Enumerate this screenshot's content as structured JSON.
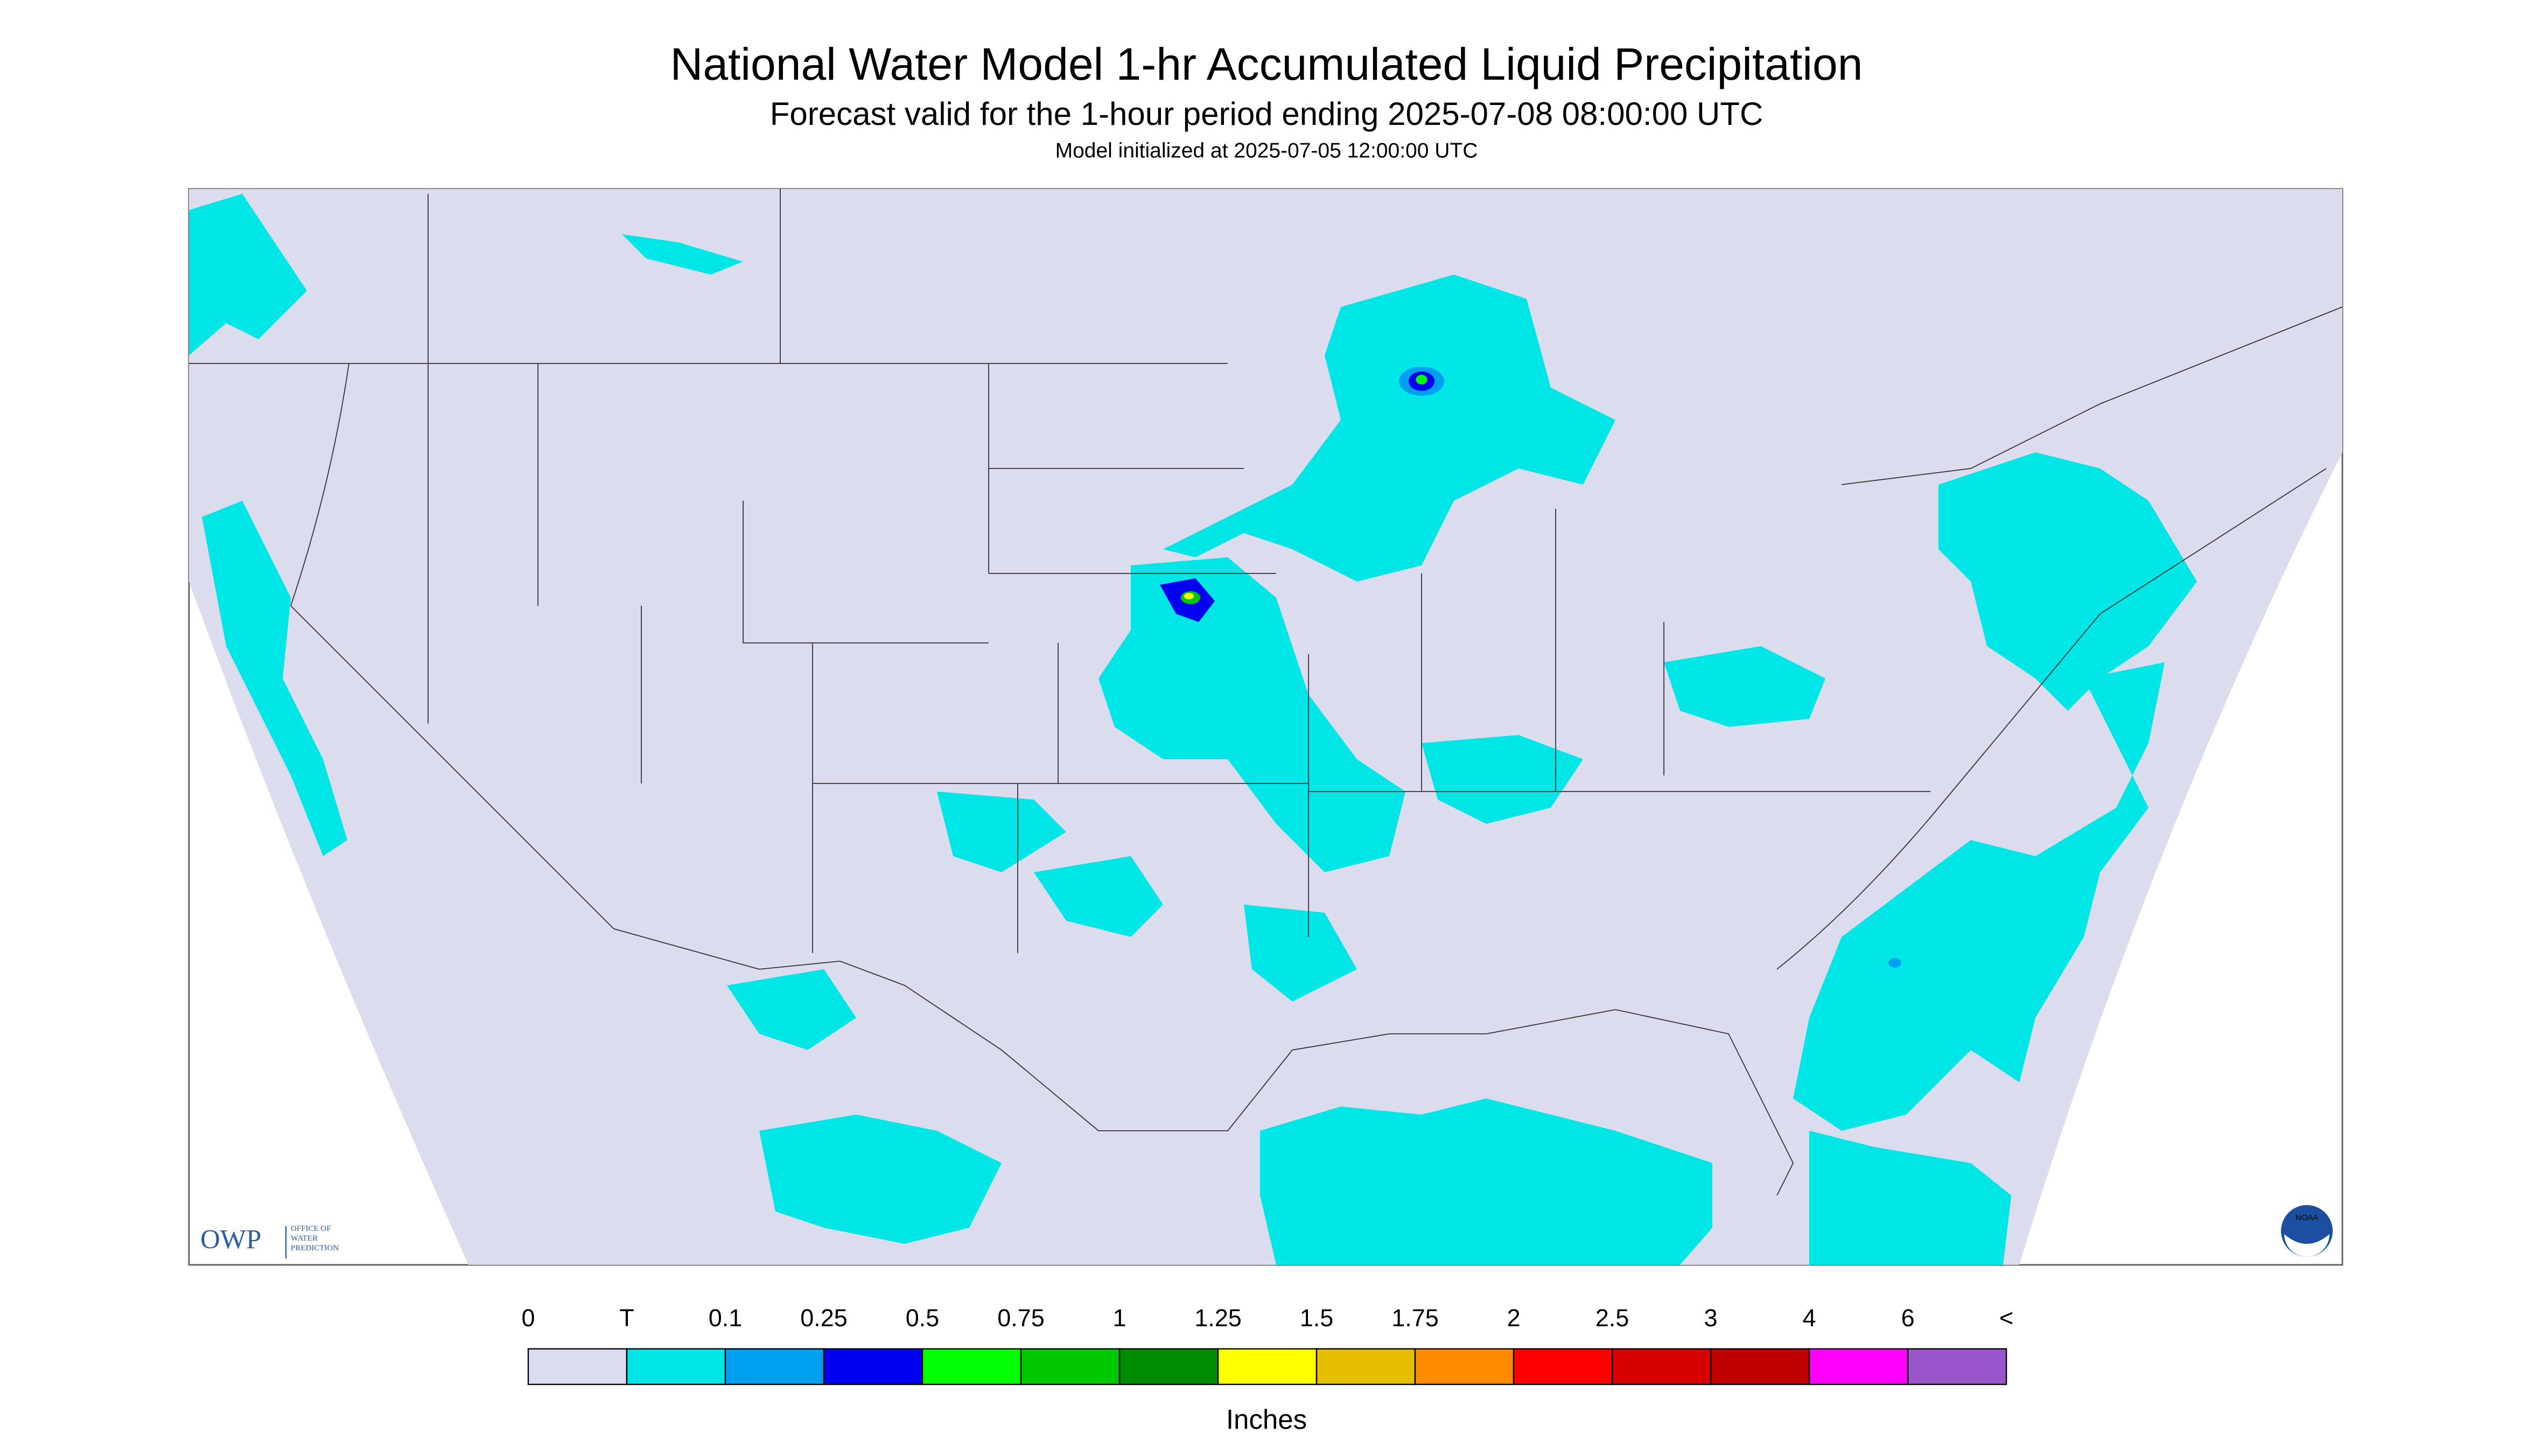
{
  "header": {
    "title": "National Water Model 1-hr Accumulated Liquid Precipitation",
    "subtitle": "Forecast valid for the 1-hour period ending 2025-07-08 08:00:00 UTC",
    "note": "Model initialized at 2025-07-05 12:00:00 UTC"
  },
  "legend": {
    "labels": [
      "0",
      "T",
      "0.1",
      "0.25",
      "0.5",
      "0.75",
      "1",
      "1.25",
      "1.5",
      "1.75",
      "2",
      "2.5",
      "3",
      "4",
      "6",
      "<"
    ],
    "colors": [
      "#dcdcef",
      "#00e6e6",
      "#00a0f0",
      "#0000f0",
      "#00ff00",
      "#00c800",
      "#008c00",
      "#ffff00",
      "#e6be00",
      "#ff8c00",
      "#ff0000",
      "#d70000",
      "#c00000",
      "#ff00ff",
      "#9955c9"
    ],
    "units": "Inches"
  },
  "logos": {
    "owp": "OWP",
    "owp_name": [
      "OFFICE OF",
      "WATER",
      "PREDICTION"
    ],
    "noaa": "NOAA"
  }
}
